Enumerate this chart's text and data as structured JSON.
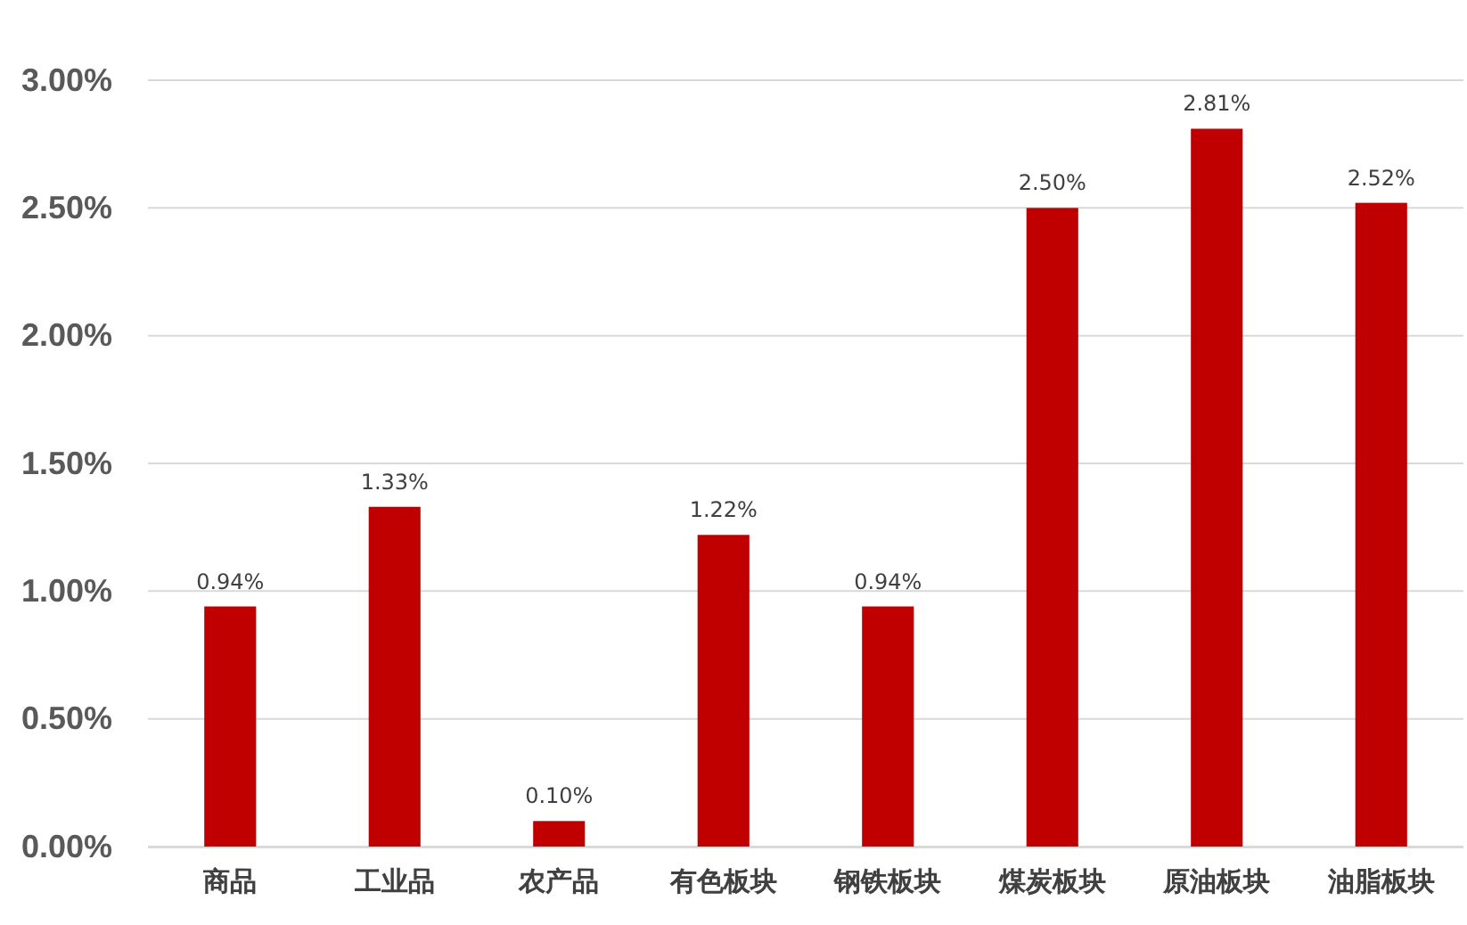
{
  "chart_data": {
    "type": "bar",
    "categories": [
      "商品",
      "工业品",
      "农产品",
      "有色板块",
      "钢铁板块",
      "煤炭板块",
      "原油板块",
      "油脂板块"
    ],
    "values": [
      0.94,
      1.33,
      0.1,
      1.22,
      0.94,
      2.5,
      2.81,
      2.52
    ],
    "value_labels": [
      "0.94%",
      "1.33%",
      "0.10%",
      "1.22%",
      "0.94%",
      "2.50%",
      "2.81%",
      "2.52%"
    ],
    "color": "#c00000",
    "ylim": [
      0,
      3
    ],
    "yticks": [
      {
        "value": 0,
        "label": "0.00%"
      },
      {
        "value": 0.5,
        "label": "0.50%"
      },
      {
        "value": 1,
        "label": "1.00%"
      },
      {
        "value": 1.5,
        "label": "1.50%"
      },
      {
        "value": 2,
        "label": "2.00%"
      },
      {
        "value": 2.5,
        "label": "2.50%"
      },
      {
        "value": 3,
        "label": "3.00%"
      }
    ],
    "grid": "y"
  }
}
